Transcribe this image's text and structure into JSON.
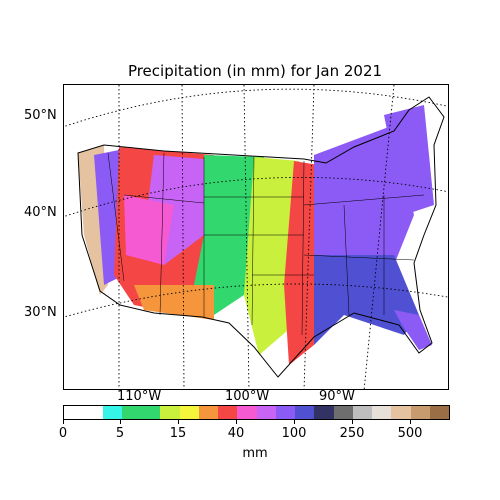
{
  "title": "Precipitation (in mm) for Jan 2021",
  "lat_labels": [
    "50°N",
    "40°N",
    "30°N"
  ],
  "lon_labels": [
    "110°W",
    "100°W",
    "90°W"
  ],
  "colorbar": {
    "label": "mm",
    "tick_labels": [
      "0",
      "5",
      "15",
      "40",
      "100",
      "250",
      "500"
    ],
    "colors": [
      "#ffffff",
      "#ffffff",
      "#36f5e8",
      "#32d86e",
      "#32d86e",
      "#c8f03c",
      "#f5f53c",
      "#f5963c",
      "#f54646",
      "#f55ad2",
      "#c864f5",
      "#8c5af5",
      "#5050d2",
      "#323264",
      "#6e6e6e",
      "#bebebe",
      "#e6e0d8",
      "#e6c3a0",
      "#c89b6e",
      "#9b6e46"
    ]
  },
  "map": {
    "legend_colors": {
      "dry": "#32d86e",
      "low": "#c8f03c",
      "mid": "#f54646",
      "wet": "#8c5af5",
      "very_wet": "#5050d2",
      "extreme": "#e6c3a0"
    }
  }
}
